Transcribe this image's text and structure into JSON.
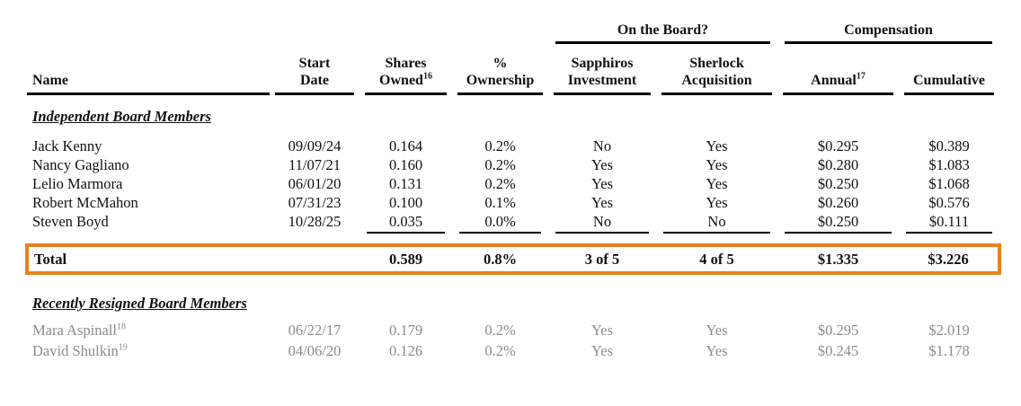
{
  "header": {
    "groups": [
      {
        "label": "On the Board?"
      },
      {
        "label": "Compensation"
      }
    ],
    "columns": [
      {
        "line1": "",
        "line2": "Name",
        "sup": ""
      },
      {
        "line1": "Start",
        "line2": "Date",
        "sup": ""
      },
      {
        "line1": "Shares",
        "line2": "Owned",
        "sup": "16"
      },
      {
        "line1": "%",
        "line2": "Ownership",
        "sup": ""
      },
      {
        "line1": "Sapphiros",
        "line2": "Investment",
        "sup": ""
      },
      {
        "line1": "Sherlock",
        "line2": "Acquisition",
        "sup": ""
      },
      {
        "line1": "",
        "line2": "Annual",
        "sup": "17"
      },
      {
        "line1": "",
        "line2": "Cumulative",
        "sup": ""
      }
    ]
  },
  "sections": [
    {
      "title": "Independent Board Members",
      "rows": [
        {
          "name": "Jack Kenny",
          "sup": "",
          "start_date": "09/09/24",
          "shares_owned": "0.164",
          "pct_ownership": "0.2%",
          "sapphiros": "No",
          "sherlock": "Yes",
          "annual": "$0.295",
          "cumulative": "$0.389"
        },
        {
          "name": "Nancy Gagliano",
          "sup": "",
          "start_date": "11/07/21",
          "shares_owned": "0.160",
          "pct_ownership": "0.2%",
          "sapphiros": "Yes",
          "sherlock": "Yes",
          "annual": "$0.280",
          "cumulative": "$1.083"
        },
        {
          "name": "Lelio Marmora",
          "sup": "",
          "start_date": "06/01/20",
          "shares_owned": "0.131",
          "pct_ownership": "0.2%",
          "sapphiros": "Yes",
          "sherlock": "Yes",
          "annual": "$0.250",
          "cumulative": "$1.068"
        },
        {
          "name": "Robert McMahon",
          "sup": "",
          "start_date": "07/31/23",
          "shares_owned": "0.100",
          "pct_ownership": "0.1%",
          "sapphiros": "Yes",
          "sherlock": "Yes",
          "annual": "$0.260",
          "cumulative": "$0.576"
        },
        {
          "name": "Steven Boyd",
          "sup": "",
          "start_date": "10/28/25",
          "shares_owned": "0.035",
          "pct_ownership": "0.0%",
          "sapphiros": "No",
          "sherlock": "No",
          "annual": "$0.250",
          "cumulative": "$0.111"
        }
      ]
    },
    {
      "title": "Recently Resigned Board Members",
      "rows": [
        {
          "name": "Mara Aspinall",
          "sup": "18",
          "start_date": "06/22/17",
          "shares_owned": "0.179",
          "pct_ownership": "0.2%",
          "sapphiros": "Yes",
          "sherlock": "Yes",
          "annual": "$0.295",
          "cumulative": "$2.019"
        },
        {
          "name": "David Shulkin",
          "sup": "19",
          "start_date": "04/06/20",
          "shares_owned": "0.126",
          "pct_ownership": "0.2%",
          "sapphiros": "Yes",
          "sherlock": "Yes",
          "annual": "$0.245",
          "cumulative": "$1.178"
        }
      ]
    }
  ],
  "total": {
    "label": "Total",
    "shares_owned": "0.589",
    "pct_ownership": "0.8%",
    "sapphiros": "3 of 5",
    "sherlock": "4 of 5",
    "annual": "$1.335",
    "cumulative": "$3.226"
  },
  "colors": {
    "highlight_border": "#E8821E",
    "resigned_text": "#8C8C8C",
    "text": "#111111"
  }
}
